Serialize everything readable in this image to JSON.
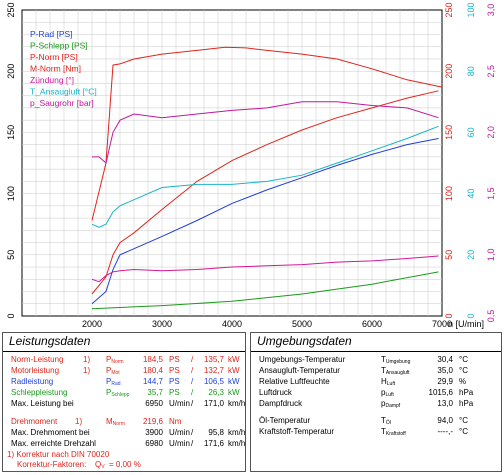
{
  "chart_data": {
    "type": "line",
    "x_axis": {
      "label": "n [U/min]",
      "min": 0,
      "max": 7000,
      "ticks": [
        2000,
        3000,
        4000,
        5000,
        6000,
        7000
      ]
    },
    "left_axis": {
      "min": 0,
      "max": 250,
      "ticks": [
        0,
        50,
        100,
        150,
        200,
        250
      ]
    },
    "right_axis_1": {
      "min": 0,
      "max": 250,
      "ticks": [
        0,
        50,
        100,
        150,
        200,
        250
      ],
      "color": "#e0241c"
    },
    "right_axis_2": {
      "min": 0,
      "max": 100,
      "ticks": [
        0,
        20,
        40,
        60,
        80,
        100
      ],
      "color": "#18b4c8"
    },
    "right_axis_3": {
      "min": 0.5,
      "max": 3.0,
      "ticks": [
        0.5,
        1.0,
        1.5,
        2.0,
        2.5,
        3.0
      ],
      "color": "#c0189c"
    },
    "grid": true,
    "legend_position": "top-left",
    "series": [
      {
        "name": "P-Rad [PS]",
        "color": "#1f3fd8",
        "x": [
          2000,
          2200,
          2300,
          2400,
          2600,
          3000,
          3500,
          4000,
          4500,
          5000,
          5500,
          6000,
          6500,
          6950
        ],
        "y": [
          10,
          20,
          38,
          50,
          55,
          65,
          78,
          92,
          103,
          113,
          123,
          132,
          140,
          145
        ]
      },
      {
        "name": "P-Schlepp [PS]",
        "color": "#1a9a1a",
        "x": [
          2000,
          3000,
          4000,
          5000,
          6000,
          6950
        ],
        "y": [
          6,
          8.5,
          12,
          18,
          26,
          36
        ]
      },
      {
        "name": "P-Norm [PS]",
        "color": "#e0241c",
        "x": [
          2000,
          2200,
          2300,
          2400,
          2600,
          3000,
          3500,
          4000,
          4500,
          5000,
          5500,
          6000,
          6500,
          6950
        ],
        "y": [
          18,
          32,
          50,
          60,
          68,
          87,
          110,
          127,
          140,
          152,
          162,
          170,
          178,
          184
        ]
      },
      {
        "name": "M-Norm [Nm]",
        "color": "#e0241c",
        "x": [
          2000,
          2200,
          2300,
          2400,
          2600,
          3000,
          3500,
          3900,
          4200,
          4500,
          5000,
          5500,
          6000,
          6500,
          7000
        ],
        "y": [
          78,
          125,
          205,
          206,
          210,
          214,
          217,
          219.6,
          219,
          217,
          214,
          210,
          202,
          193,
          187
        ]
      },
      {
        "name": "Zündung [°]",
        "color": "#d0189a",
        "x": [
          2000,
          2100,
          2200,
          2300,
          2400,
          2600,
          3000,
          3500,
          4000,
          4500,
          5000,
          5500,
          6000,
          6500,
          6950
        ],
        "y": [
          30,
          28,
          33,
          36,
          37,
          38,
          37,
          38,
          40,
          41,
          42,
          44,
          45,
          47,
          49
        ]
      },
      {
        "name": "T_Ansaugluft [°C]",
        "color": "#18b4c8",
        "x": [
          2000,
          2100,
          2200,
          2300,
          2400,
          2600,
          3000,
          3500,
          4000,
          4500,
          5000,
          5500,
          6000,
          6500,
          6950
        ],
        "y": [
          30,
          29,
          30,
          34,
          36,
          38,
          42,
          43,
          43,
          44,
          46,
          50,
          54,
          58,
          62
        ]
      },
      {
        "name": "p_Saugrohr [bar]",
        "color": "#c0189c",
        "x": [
          2000,
          2100,
          2200,
          2300,
          2400,
          2600,
          3000,
          3500,
          4000,
          4500,
          5000,
          5500,
          6000,
          6500,
          6950
        ],
        "y": [
          1.8,
          1.8,
          1.75,
          2.0,
          2.1,
          2.15,
          2.12,
          2.15,
          2.18,
          2.2,
          2.25,
          2.25,
          2.22,
          2.2,
          2.12
        ]
      }
    ]
  },
  "leistungsdaten": {
    "title": "Leistungsdaten",
    "rows": [
      {
        "label": "Norm-Leistung",
        "mark": "1)",
        "sym": "P",
        "sub": "Norm",
        "v1": "184,5",
        "u1": "PS",
        "v2": "135,7",
        "u2": "kW",
        "color": "red"
      },
      {
        "label": "Motorleistung",
        "mark": "1)",
        "sym": "P",
        "sub": "Mot",
        "v1": "180,4",
        "u1": "PS",
        "v2": "132,7",
        "u2": "kW",
        "color": "red"
      },
      {
        "label": "Radleistung",
        "mark": "",
        "sym": "P",
        "sub": "Rad",
        "v1": "144,7",
        "u1": "PS",
        "v2": "106,5",
        "u2": "kW",
        "color": "blue"
      },
      {
        "label": "Schleppleistung",
        "mark": "",
        "sym": "P",
        "sub": "Schlepp",
        "v1": "35,7",
        "u1": "PS",
        "v2": "26,3",
        "u2": "kW",
        "color": "green"
      },
      {
        "label": "Max. Leistung bei",
        "mark": "",
        "sym": "",
        "sub": "",
        "v1": "6950",
        "u1": "U/min",
        "v2": "171,0",
        "u2": "km/h",
        "color": ""
      },
      {
        "label": "Drehmoment",
        "mark": "1)",
        "sym": "M",
        "sub": "Norm",
        "v1": "219,6",
        "u1": "Nm",
        "v2": "",
        "u2": "",
        "color": "red"
      },
      {
        "label": "Max. Drehmoment bei",
        "mark": "",
        "sym": "",
        "sub": "",
        "v1": "3900",
        "u1": "U/min",
        "v2": "95,8",
        "u2": "km/h",
        "color": ""
      },
      {
        "label": "Max. erreichte Drehzahl",
        "mark": "",
        "sym": "",
        "sub": "",
        "v1": "6980",
        "u1": "U/min",
        "v2": "171,6",
        "u2": "km/h",
        "color": ""
      }
    ],
    "footnote1": "1) Korrektur nach DIN 70020",
    "footnote2_label": "Korrektur-Faktoren:",
    "footnote2_sym": "Q",
    "footnote2_sub": "V",
    "footnote2_value": "= 0,00 %"
  },
  "umgebungsdaten": {
    "title": "Umgebungsdaten",
    "rows": [
      {
        "label": "Umgebungs-Temperatur",
        "sym": "T",
        "sub": "Umgebung",
        "value": "30,4",
        "unit": "°C"
      },
      {
        "label": "Ansaugluft-Temperatur",
        "sym": "T",
        "sub": "Ansaugluft",
        "value": "35,0",
        "unit": "°C"
      },
      {
        "label": "Relative Luftfeuchte",
        "sym": "H",
        "sub": "Luft",
        "value": "29,9",
        "unit": "%"
      },
      {
        "label": "Luftdruck",
        "sym": "p",
        "sub": "Luft",
        "value": "1015,6",
        "unit": "hPa"
      },
      {
        "label": "Dampfdruck",
        "sym": "p",
        "sub": "Dampf",
        "value": "13,0",
        "unit": "hPa"
      },
      {
        "label": "Öl-Temperatur",
        "sym": "T",
        "sub": "Öl",
        "value": "94,0",
        "unit": "°C"
      },
      {
        "label": "Kraftstoff-Temperatur",
        "sym": "T",
        "sub": "Kraftstoff",
        "value": "----,-",
        "unit": "°C"
      }
    ]
  }
}
